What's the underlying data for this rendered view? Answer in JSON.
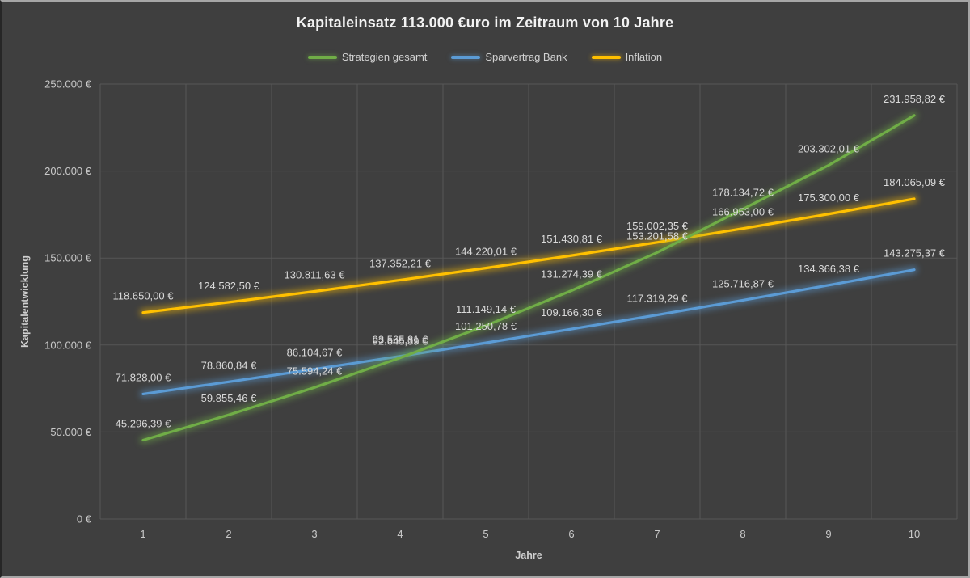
{
  "window": {
    "background": "#3f3f3f",
    "frame_color": "#a6a6a6",
    "gridline_color": "#575757",
    "text_color": "#d9d9d9"
  },
  "chart_data": {
    "type": "line",
    "title": "Kapitaleinsatz 113.000 €uro im Zeitraum von 10 Jahre",
    "xlabel": "Jahre",
    "ylabel": "Kapitalentwicklung",
    "x": [
      1,
      2,
      3,
      4,
      5,
      6,
      7,
      8,
      9,
      10
    ],
    "ylim": [
      0,
      250000
    ],
    "grid": true,
    "legend_position": "top",
    "y_ticks": [
      {
        "value": 0,
        "label": "0 €"
      },
      {
        "value": 50000,
        "label": "50.000 €"
      },
      {
        "value": 100000,
        "label": "100.000 €"
      },
      {
        "value": 150000,
        "label": "150.000 €"
      },
      {
        "value": 200000,
        "label": "200.000 €"
      },
      {
        "value": 250000,
        "label": "250.000 €"
      }
    ],
    "series": [
      {
        "name": "Strategien gesamt",
        "color": "#70ad47",
        "values": [
          45296.39,
          59855.46,
          75594.24,
          92645.39,
          111149.14,
          131274.39,
          153201.58,
          178134.72,
          203302.01,
          231958.82
        ],
        "labels": [
          "45.296,39 €",
          "59.855,46 €",
          "75.594,24 €",
          "92.645,39 €",
          "111.149,14 €",
          "131.274,39 €",
          "153.201,58 €",
          "178.134,72 €",
          "203.302,01 €",
          "231.958,82 €"
        ]
      },
      {
        "name": "Sparvertrag Bank",
        "color": "#5b9bd5",
        "values": [
          71828.0,
          78860.84,
          86104.67,
          93565.81,
          101250.78,
          109166.3,
          117319.29,
          125716.87,
          134366.38,
          143275.37
        ],
        "labels": [
          "71.828,00 €",
          "78.860,84 €",
          "86.104,67 €",
          "93.565,81 €",
          "101.250,78 €",
          "109.166,30 €",
          "117.319,29 €",
          "125.716,87 €",
          "134.366,38 €",
          "143.275,37 €"
        ]
      },
      {
        "name": "Inflation",
        "color": "#ffc000",
        "values": [
          118650.0,
          124582.5,
          130811.63,
          137352.21,
          144220.01,
          151430.81,
          159002.35,
          166953.0,
          175300.0,
          184065.09
        ],
        "labels": [
          "118.650,00 €",
          "124.582,50 €",
          "130.811,63 €",
          "137.352,21 €",
          "144.220,01 €",
          "151.430,81 €",
          "159.002,35 €",
          "166.953,00 €",
          "175.300,00 €",
          "184.065,09 €"
        ]
      }
    ]
  }
}
